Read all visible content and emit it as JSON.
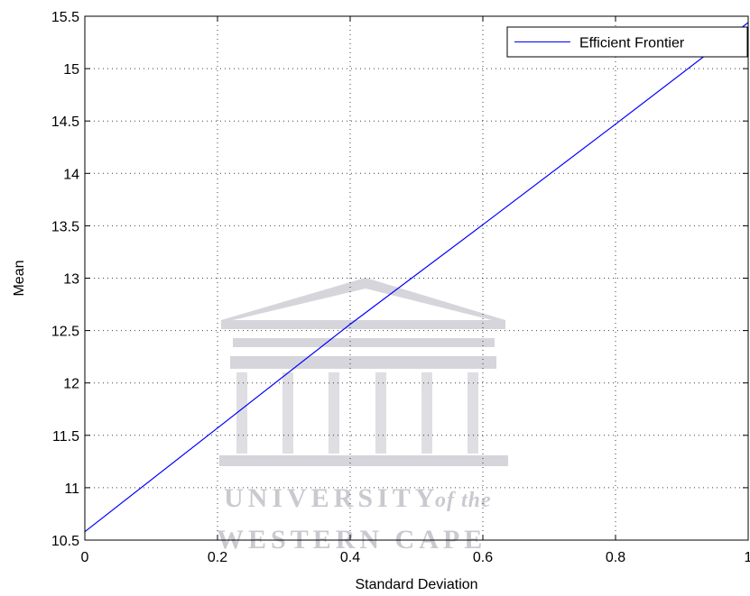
{
  "chart_data": {
    "type": "line",
    "title": "",
    "xlabel": "Standard Deviation",
    "ylabel": "Mean",
    "xlim": [
      0,
      1
    ],
    "ylim": [
      10.5,
      15.5
    ],
    "xticks": [
      0,
      0.2,
      0.4,
      0.6,
      0.8,
      1
    ],
    "xtick_labels": [
      "0",
      "0.2",
      "0.4",
      "0.6",
      "0.8",
      "1"
    ],
    "yticks": [
      10.5,
      11,
      11.5,
      12,
      12.5,
      13,
      13.5,
      14,
      14.5,
      15,
      15.5
    ],
    "ytick_labels": [
      "10.5",
      "11",
      "11.5",
      "12",
      "12.5",
      "13",
      "13.5",
      "14",
      "14.5",
      "15",
      "15.5"
    ],
    "grid": true,
    "legend": {
      "position": "top-right"
    },
    "series": [
      {
        "name": "Efficient Frontier",
        "color": "#0000ff",
        "x": [
          0,
          0.2,
          0.4,
          0.6,
          0.8,
          1.0
        ],
        "y": [
          10.58,
          11.57,
          12.56,
          13.51,
          14.47,
          15.44
        ]
      }
    ]
  },
  "watermark": {
    "line1": "UNIVERSITY",
    "line1_suffix": "of the",
    "line2": "WESTERN CAPE",
    "color": "#b8b8c0"
  }
}
